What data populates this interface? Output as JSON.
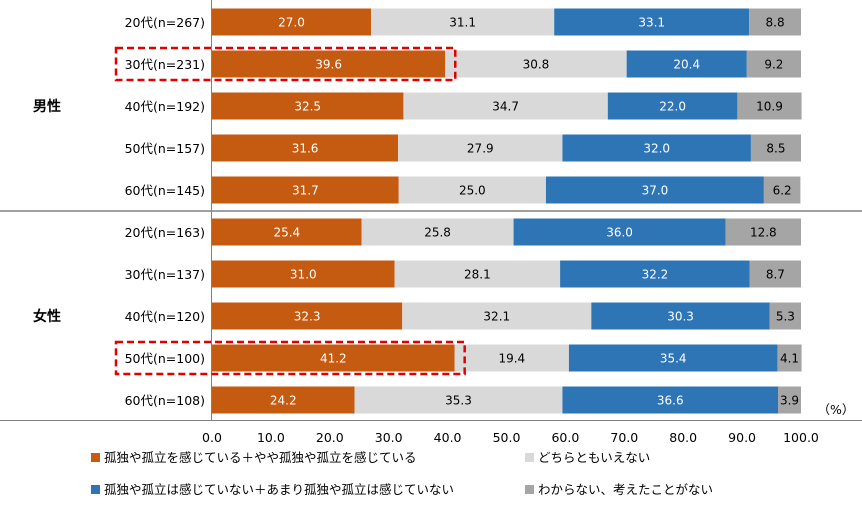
{
  "chart_data": {
    "type": "bar",
    "stacked": true,
    "orientation": "horizontal",
    "unit_label": "（%）",
    "xlim": [
      0,
      100
    ],
    "xticks": [
      "0.0",
      "10.0",
      "20.0",
      "30.0",
      "40.0",
      "50.0",
      "60.0",
      "70.0",
      "80.0",
      "90.0",
      "100.0"
    ],
    "groups": [
      {
        "name": "男性",
        "categories": [
          "20代(n=267)",
          "30代(n=231)",
          "40代(n=192)",
          "50代(n=157)",
          "60代(n=145)"
        ]
      },
      {
        "name": "女性",
        "categories": [
          "20代(n=163)",
          "30代(n=137)",
          "40代(n=120)",
          "50代(n=100)",
          "60代(n=108)"
        ]
      }
    ],
    "series": [
      {
        "name": "孤独や孤立を感じている＋やや孤独や孤立を感じている",
        "color": "#C55A11",
        "text_color": "#ffffff",
        "values": [
          "27.0",
          "39.6",
          "32.5",
          "31.6",
          "31.7",
          "25.4",
          "31.0",
          "32.3",
          "41.2",
          "24.2"
        ]
      },
      {
        "name": "どちらともいえない",
        "color": "#D9D9D9",
        "text_color": "#000000",
        "values": [
          "31.1",
          "30.8",
          "34.7",
          "27.9",
          "25.0",
          "25.8",
          "28.1",
          "32.1",
          "19.4",
          "35.3"
        ]
      },
      {
        "name": "孤独や孤立は感じていない＋あまり孤独や孤立は感じていない",
        "color": "#2E75B6",
        "text_color": "#ffffff",
        "values": [
          "33.1",
          "20.4",
          "22.0",
          "32.0",
          "37.0",
          "36.0",
          "32.2",
          "30.3",
          "35.4",
          "36.6"
        ]
      },
      {
        "name": "わからない、考えたことがない",
        "color": "#A5A5A5",
        "text_color": "#000000",
        "values": [
          "8.8",
          "9.2",
          "10.9",
          "8.5",
          "6.2",
          "12.8",
          "8.7",
          "5.3",
          "4.1",
          "3.9"
        ]
      }
    ],
    "highlighted": [
      "30代(n=231)",
      "50代(n=100)"
    ],
    "highlight_color": "#E00000"
  }
}
